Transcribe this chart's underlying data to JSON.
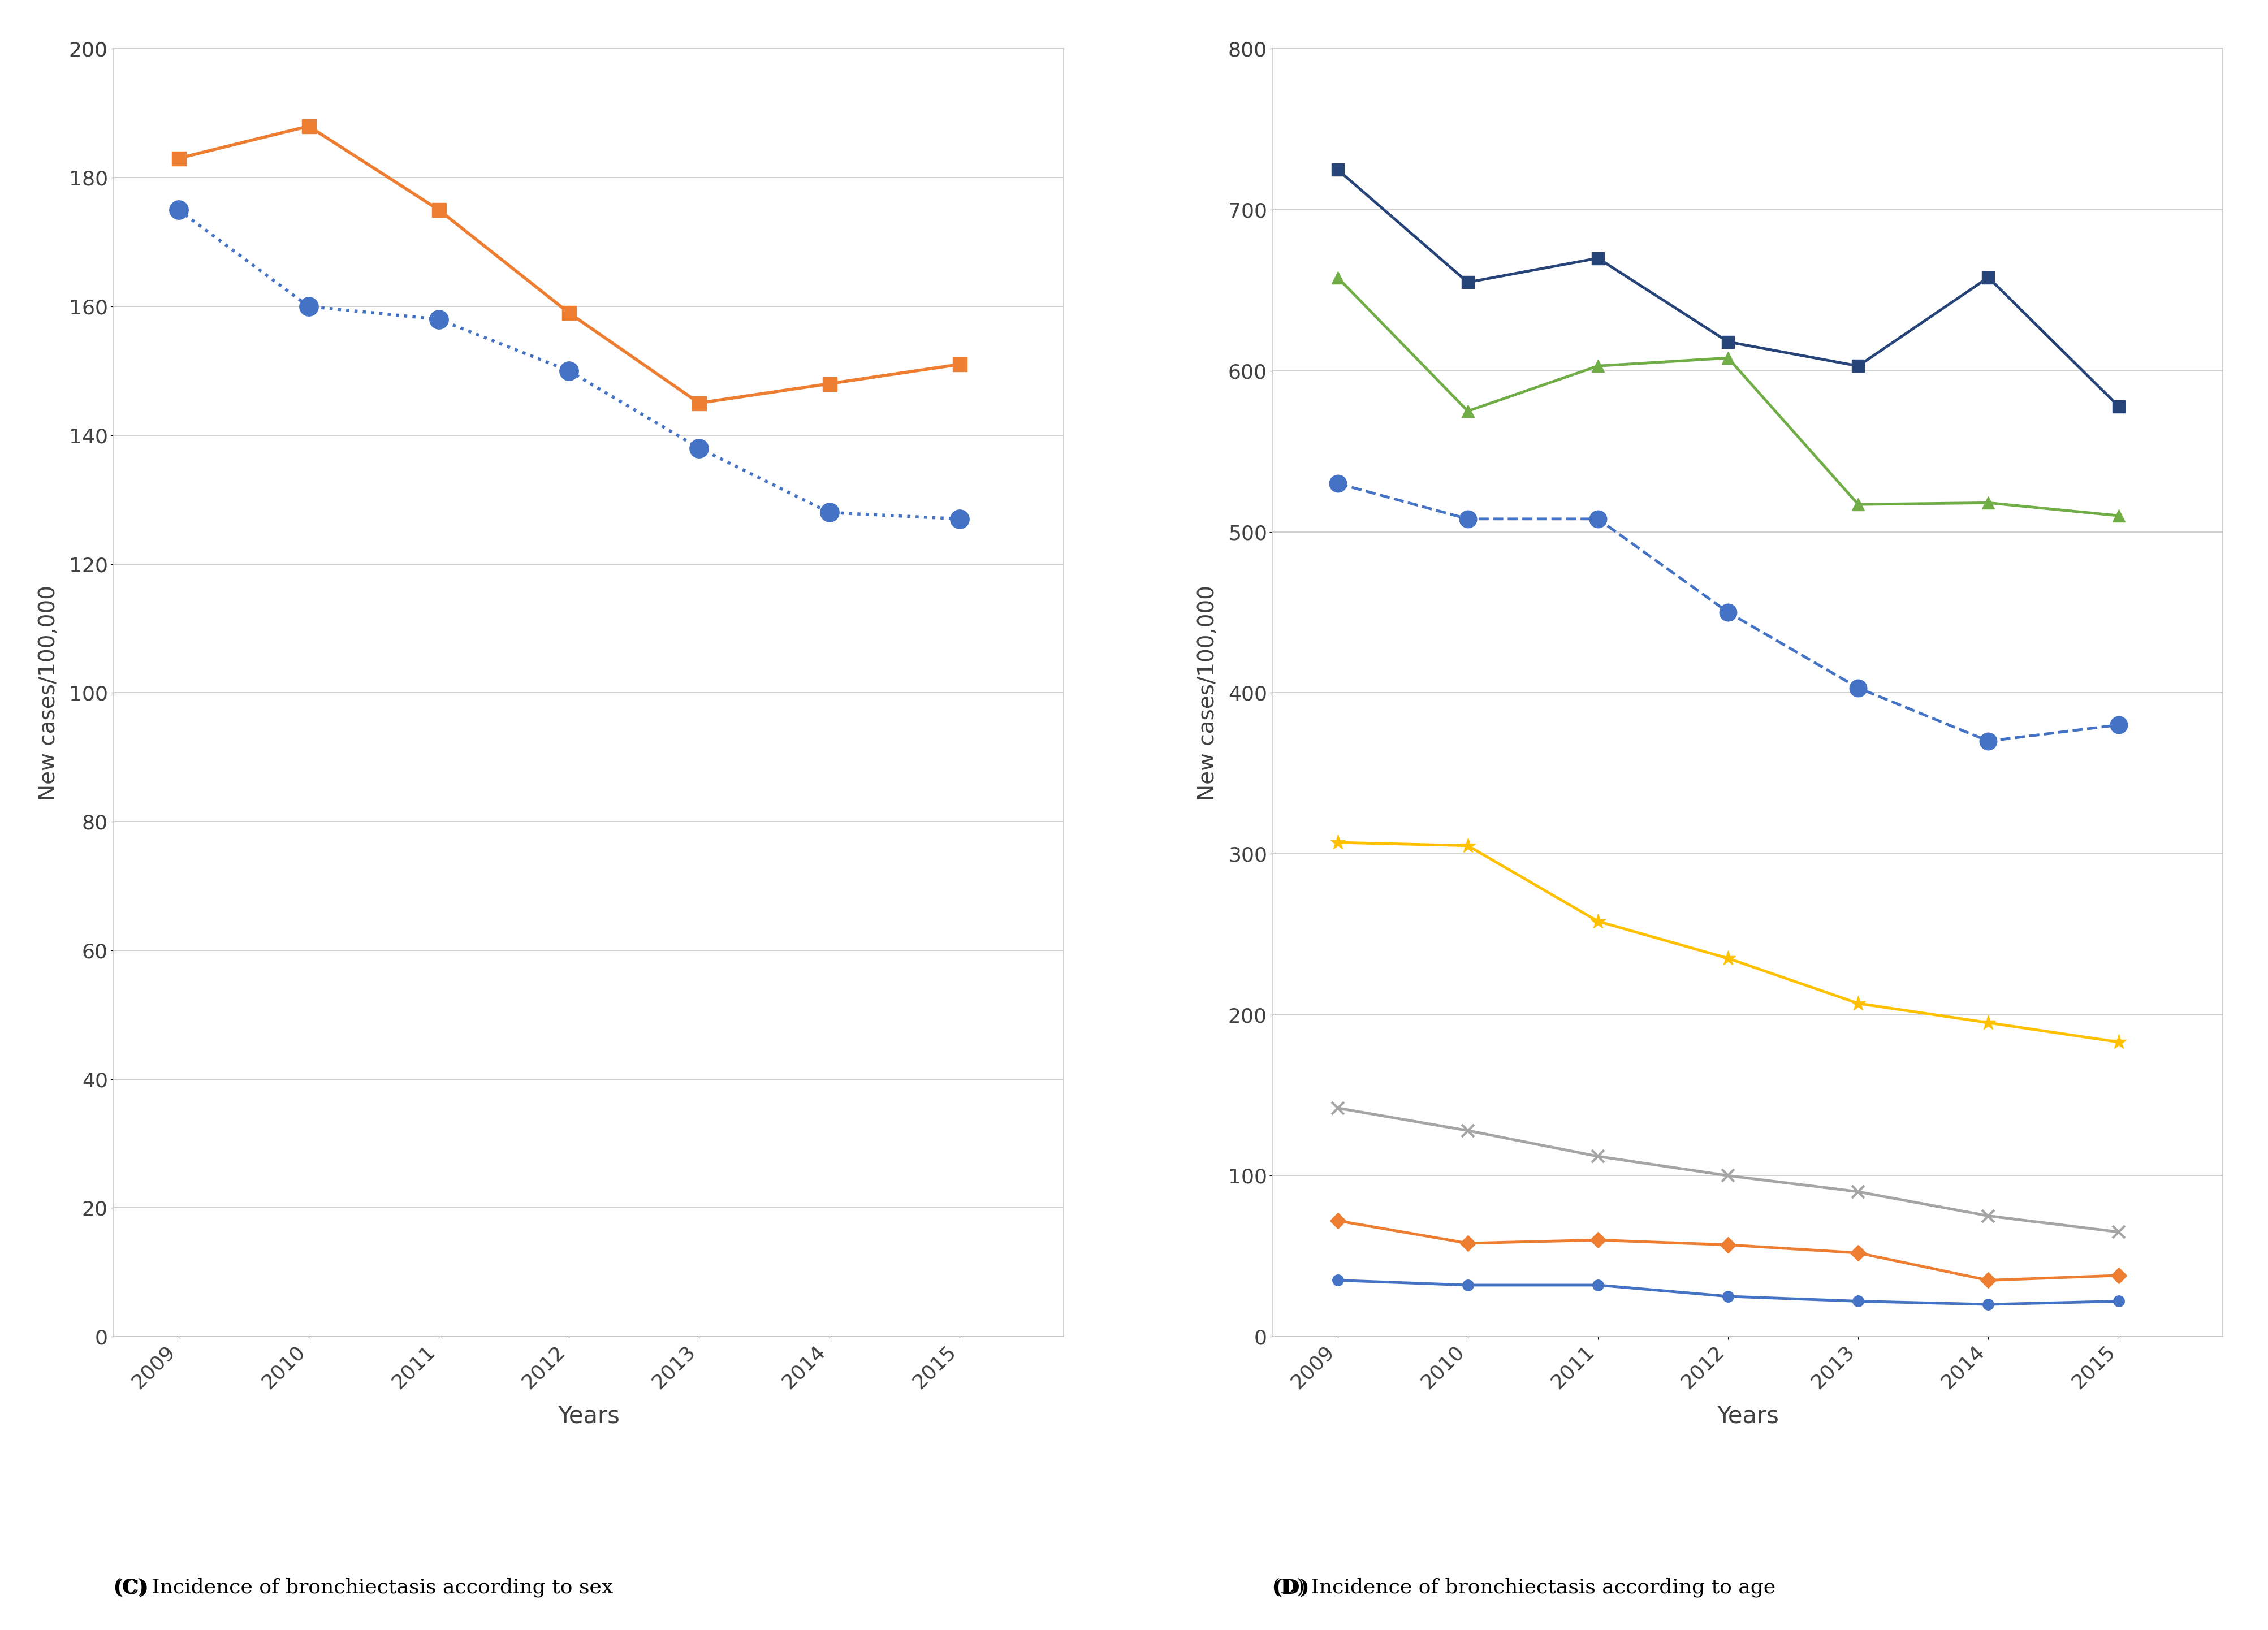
{
  "years": [
    2009,
    2010,
    2011,
    2012,
    2013,
    2014,
    2015
  ],
  "male": [
    175,
    160,
    158,
    150,
    138,
    128,
    127
  ],
  "female": [
    183,
    188,
    175,
    159,
    145,
    148,
    151
  ],
  "age_20_29": [
    35,
    32,
    32,
    25,
    22,
    20,
    22
  ],
  "age_30_39": [
    72,
    58,
    60,
    57,
    52,
    35,
    38
  ],
  "age_40_49": [
    142,
    128,
    112,
    100,
    90,
    75,
    65
  ],
  "age_50_59": [
    307,
    305,
    258,
    235,
    207,
    195,
    183
  ],
  "age_60_69": [
    530,
    508,
    508,
    450,
    403,
    370,
    380
  ],
  "age_70_79": [
    658,
    575,
    603,
    608,
    517,
    518,
    510
  ],
  "age_over_80": [
    725,
    655,
    670,
    618,
    603,
    658,
    578
  ],
  "male_color": "#4472C4",
  "female_color": "#ED7D31",
  "c20_29_color": "#4472C4",
  "c30_39_color": "#ED7D31",
  "c40_49_color": "#A5A5A5",
  "c50_59_color": "#FFC000",
  "c60_69_color": "#4472C4",
  "c70_79_color": "#70AD47",
  "c80_color": "#264478",
  "ylabel_C": "New cases/100,000",
  "ylabel_D": "New cases/100,000",
  "xlabel": "Years",
  "caption_C": "(C) Incidence of bronchiectasis according to sex",
  "caption_D": "(D) Incidence of bronchiectasis according to age",
  "ylim_C": [
    0,
    200
  ],
  "ylim_D": [
    0,
    800
  ],
  "yticks_C": [
    0,
    20,
    40,
    60,
    80,
    100,
    120,
    140,
    160,
    180,
    200
  ],
  "yticks_D": [
    0,
    100,
    200,
    300,
    400,
    500,
    600,
    700,
    800
  ]
}
